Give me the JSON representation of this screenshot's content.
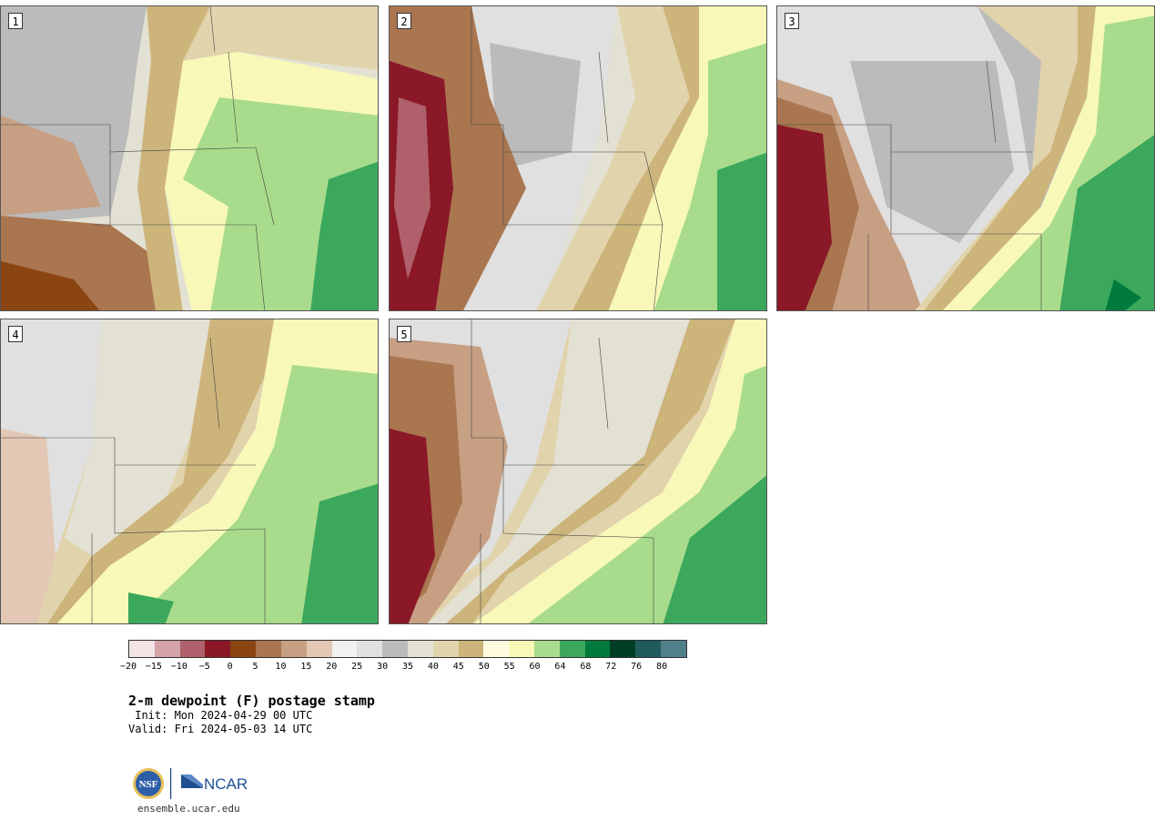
{
  "panels": [
    {
      "label": "1"
    },
    {
      "label": "2"
    },
    {
      "label": "3"
    },
    {
      "label": "4"
    },
    {
      "label": "5"
    }
  ],
  "colorbar": {
    "colors": [
      "#f3e4e6",
      "#d4a3aa",
      "#b0606a",
      "#8a1827",
      "#8b4513",
      "#a97650",
      "#c79f83",
      "#e2c8b5",
      "#f1f1f1",
      "#e0e0e0",
      "#bbbbbb",
      "#e2e1d3",
      "#e1d3ab",
      "#cdb47a",
      "#fffce2",
      "#f8f8b8",
      "#a8dc8c",
      "#3ca85c",
      "#007a3d",
      "#003f25",
      "#1e5c5c",
      "#50808a"
    ],
    "tick_labels": [
      "−20",
      "−15",
      "−10",
      "−5",
      "0",
      "5",
      "10",
      "15",
      "20",
      "25",
      "30",
      "35",
      "40",
      "45",
      "50",
      "55",
      "60",
      "64",
      "68",
      "72",
      "76",
      "80"
    ]
  },
  "title": "2-m dewpoint (F) postage stamp",
  "init_line": " Init: Mon 2024-04-29 00 UTC",
  "valid_line": "Valid: Fri 2024-05-03 14 UTC",
  "logos": {
    "nsf": "NSF",
    "ncar": "NCAR"
  },
  "site": "ensemble.ucar.edu"
}
